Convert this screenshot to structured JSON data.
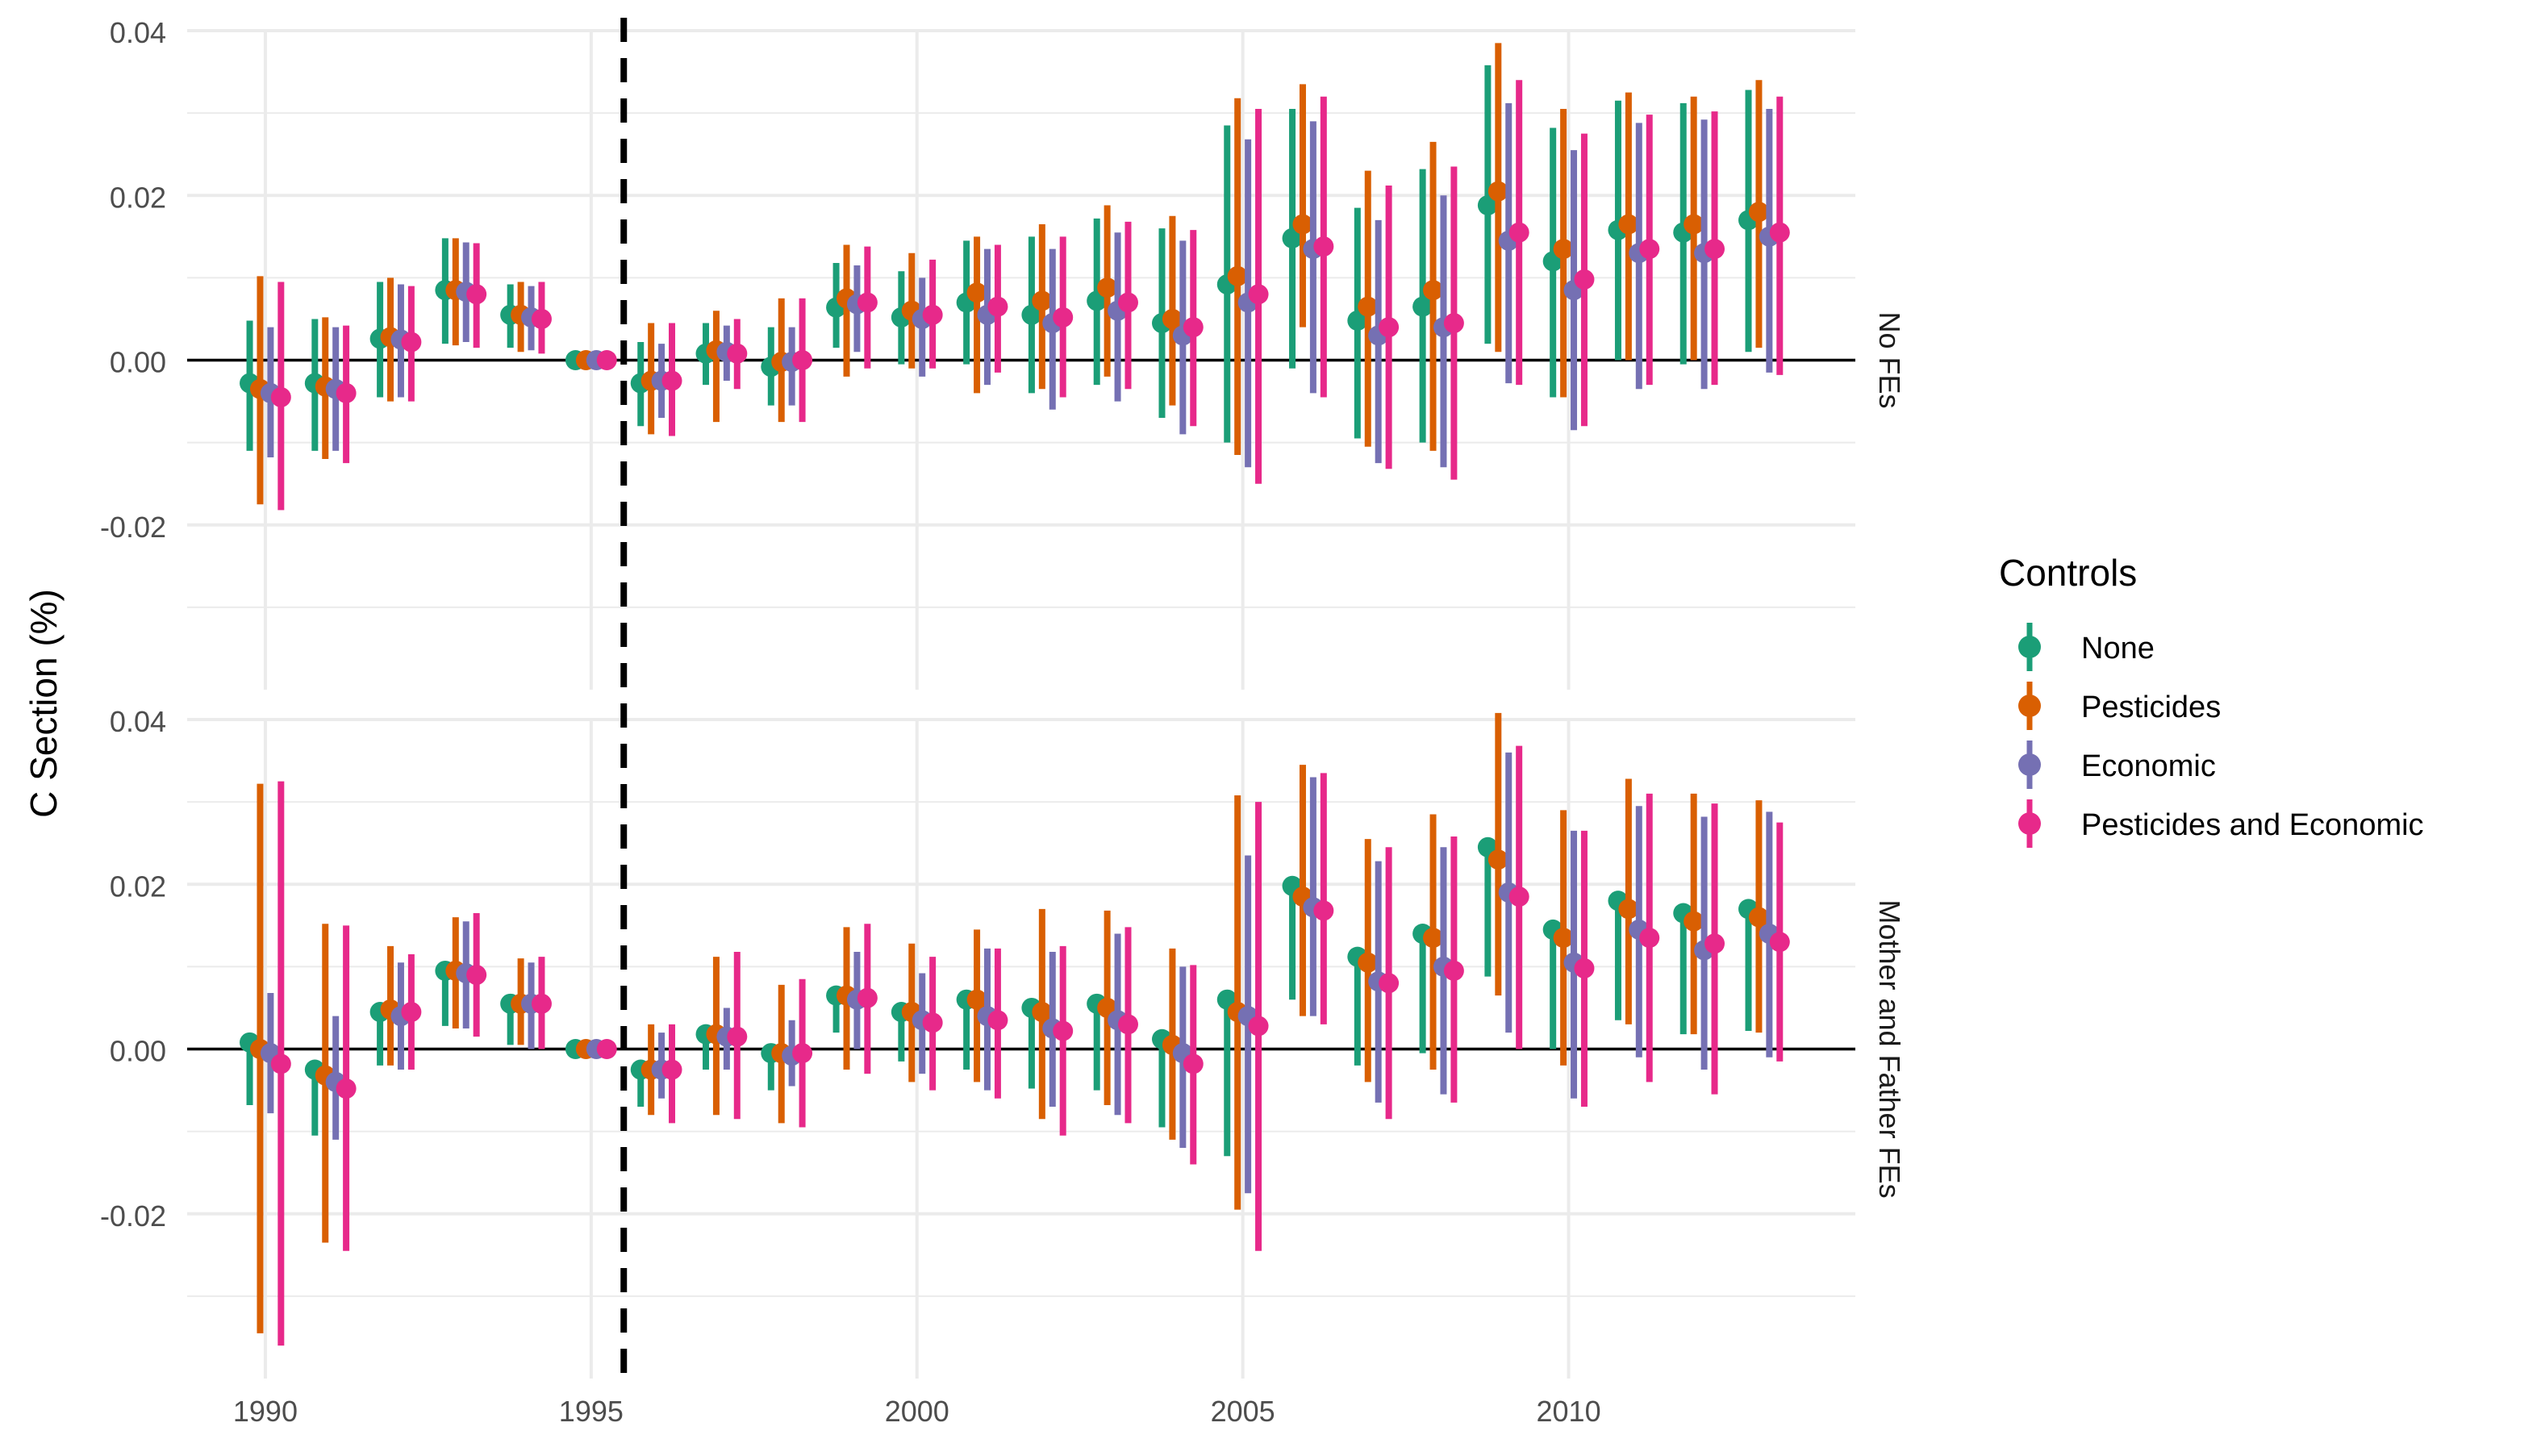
{
  "chart_data": {
    "type": "errorbar",
    "ylabel": "C Section (%)",
    "x_ticks": [
      1990,
      1995,
      2000,
      2005,
      2010
    ],
    "y_ticks": [
      -0.02,
      0.0,
      0.02,
      0.04
    ],
    "y_tick_labels": [
      "-0.02",
      "0.00",
      "0.02",
      "0.04"
    ],
    "ylim": [
      -0.04,
      0.04
    ],
    "xlim": [
      1988.8,
      2014.4
    ],
    "reference_line": {
      "y": 0,
      "color": "#000000"
    },
    "event_line": {
      "x": 1995.5,
      "style": "dashed"
    },
    "grid": true,
    "legend": {
      "title": "Controls",
      "position": "right",
      "entries": [
        {
          "label": "None",
          "color": "#1B9E77"
        },
        {
          "label": "Pesticides",
          "color": "#D95F02"
        },
        {
          "label": "Economic",
          "color": "#7570B3"
        },
        {
          "label": "Pesticides and Economic",
          "color": "#E7298A"
        }
      ]
    },
    "dodge": [
      -0.24,
      -0.08,
      0.08,
      0.24
    ],
    "years": [
      1990,
      1991,
      1992,
      1993,
      1994,
      1995,
      1996,
      1997,
      1998,
      1999,
      2000,
      2001,
      2002,
      2003,
      2004,
      2005,
      2006,
      2007,
      2008,
      2009,
      2010,
      2011,
      2012,
      2013
    ],
    "panels": [
      {
        "label": "No FEs",
        "series": [
          {
            "name": "None",
            "est": [
              -0.0028,
              -0.0028,
              0.0026,
              0.0085,
              0.0055,
              0.0,
              -0.0028,
              0.0008,
              -0.0008,
              0.0064,
              0.0052,
              0.007,
              0.0055,
              0.0072,
              0.0045,
              0.0092,
              0.0148,
              0.0048,
              0.0065,
              0.0188,
              0.012,
              0.0158,
              0.0155,
              0.017
            ],
            "low": [
              -0.011,
              -0.011,
              -0.0045,
              0.002,
              0.0015,
              0.0,
              -0.008,
              -0.003,
              -0.0055,
              0.0015,
              -0.0005,
              -0.0005,
              -0.004,
              -0.003,
              -0.007,
              -0.01,
              -0.001,
              -0.0095,
              -0.01,
              0.002,
              -0.0045,
              0.0,
              -0.0005,
              0.001
            ],
            "high": [
              0.0048,
              0.005,
              0.0095,
              0.0148,
              0.0092,
              0.0,
              0.0022,
              0.0045,
              0.004,
              0.0118,
              0.0108,
              0.0145,
              0.015,
              0.0172,
              0.016,
              0.0285,
              0.0305,
              0.0185,
              0.0232,
              0.0358,
              0.0282,
              0.0315,
              0.0312,
              0.0328
            ]
          },
          {
            "name": "Pesticides",
            "est": [
              -0.0035,
              -0.0032,
              0.0028,
              0.0085,
              0.0055,
              0.0,
              -0.0025,
              0.0012,
              -0.0002,
              0.0075,
              0.006,
              0.0082,
              0.0072,
              0.0088,
              0.005,
              0.0102,
              0.0165,
              0.0065,
              0.0085,
              0.0205,
              0.0135,
              0.0165,
              0.0165,
              0.018
            ],
            "low": [
              -0.0175,
              -0.012,
              -0.005,
              0.0018,
              0.001,
              0.0,
              -0.009,
              -0.0075,
              -0.0075,
              -0.002,
              -0.001,
              -0.004,
              -0.0035,
              -0.002,
              -0.0055,
              -0.0115,
              0.004,
              -0.0105,
              -0.011,
              0.001,
              -0.0045,
              0.0,
              0.0,
              0.0015
            ],
            "high": [
              0.0102,
              0.0052,
              0.01,
              0.0148,
              0.0095,
              0.0,
              0.0045,
              0.006,
              0.0075,
              0.014,
              0.013,
              0.015,
              0.0165,
              0.0188,
              0.0175,
              0.0318,
              0.0335,
              0.023,
              0.0265,
              0.0385,
              0.0305,
              0.0325,
              0.032,
              0.034
            ]
          },
          {
            "name": "Economic",
            "est": [
              -0.004,
              -0.0035,
              0.0025,
              0.0083,
              0.0052,
              0.0,
              -0.0025,
              0.001,
              -0.0002,
              0.0068,
              0.005,
              0.0055,
              0.0045,
              0.006,
              0.003,
              0.007,
              0.0135,
              0.003,
              0.004,
              0.0145,
              0.0085,
              0.013,
              0.013,
              0.015
            ],
            "low": [
              -0.0118,
              -0.011,
              -0.0045,
              0.0022,
              0.0012,
              0.0,
              -0.007,
              -0.0025,
              -0.0055,
              0.001,
              -0.002,
              -0.003,
              -0.006,
              -0.005,
              -0.009,
              -0.013,
              -0.004,
              -0.0125,
              -0.013,
              -0.0028,
              -0.0085,
              -0.0035,
              -0.0035,
              -0.0015
            ],
            "high": [
              0.004,
              0.004,
              0.0092,
              0.0143,
              0.009,
              0.0,
              0.002,
              0.0042,
              0.004,
              0.0115,
              0.01,
              0.0135,
              0.0135,
              0.0155,
              0.0145,
              0.0268,
              0.029,
              0.017,
              0.02,
              0.0312,
              0.0255,
              0.0288,
              0.0292,
              0.0305
            ]
          },
          {
            "name": "Pesticides and Economic",
            "est": [
              -0.0045,
              -0.004,
              0.0022,
              0.008,
              0.005,
              0.0,
              -0.0025,
              0.0008,
              0.0,
              0.007,
              0.0055,
              0.0065,
              0.0052,
              0.007,
              0.004,
              0.008,
              0.0138,
              0.004,
              0.0045,
              0.0155,
              0.0098,
              0.0135,
              0.0135,
              0.0155
            ],
            "low": [
              -0.0182,
              -0.0125,
              -0.005,
              0.0015,
              0.0008,
              0.0,
              -0.0092,
              -0.0035,
              -0.0075,
              -0.001,
              -0.001,
              -0.0015,
              -0.0045,
              -0.0035,
              -0.008,
              -0.015,
              -0.0045,
              -0.0132,
              -0.0145,
              -0.003,
              -0.008,
              -0.003,
              -0.003,
              -0.0018
            ],
            "high": [
              0.0095,
              0.0042,
              0.009,
              0.0142,
              0.0095,
              0.0,
              0.0045,
              0.005,
              0.0075,
              0.0138,
              0.0122,
              0.014,
              0.015,
              0.0168,
              0.0158,
              0.0305,
              0.032,
              0.0212,
              0.0235,
              0.034,
              0.0275,
              0.0298,
              0.0302,
              0.032
            ]
          }
        ]
      },
      {
        "label": "Mother and Father FEs",
        "series": [
          {
            "name": "None",
            "est": [
              0.0008,
              -0.0025,
              0.0045,
              0.0095,
              0.0055,
              0.0,
              -0.0025,
              0.0018,
              -0.0005,
              0.0065,
              0.0045,
              0.006,
              0.005,
              0.0055,
              0.0012,
              0.006,
              0.0198,
              0.0112,
              0.014,
              0.0245,
              0.0145,
              0.018,
              0.0165,
              0.017
            ],
            "low": [
              -0.0068,
              -0.0105,
              -0.002,
              0.0028,
              0.0005,
              0.0,
              -0.007,
              -0.0025,
              -0.005,
              0.002,
              -0.0015,
              -0.0025,
              -0.0048,
              -0.005,
              -0.0095,
              -0.013,
              0.006,
              -0.002,
              -0.0005,
              0.0088,
              0.0,
              0.0035,
              0.0018,
              0.0022
            ]
          },
          {
            "name": "Pesticides",
            "est": [
              0.0,
              -0.0032,
              0.0048,
              0.0095,
              0.0055,
              0.0,
              -0.0025,
              0.0018,
              -0.0005,
              0.0065,
              0.0045,
              0.006,
              0.0045,
              0.005,
              0.0005,
              0.0045,
              0.0185,
              0.0105,
              0.0135,
              0.023,
              0.0135,
              0.017,
              0.0155,
              0.016
            ],
            "low": [
              -0.0345,
              -0.0235,
              -0.002,
              0.0025,
              0.0005,
              0.0,
              -0.008,
              -0.008,
              -0.009,
              -0.0025,
              -0.004,
              -0.004,
              -0.0085,
              -0.0068,
              -0.011,
              -0.0195,
              0.004,
              -0.004,
              -0.0025,
              0.0065,
              -0.002,
              0.003,
              0.0018,
              0.002
            ],
            "high": [
              0.0322,
              0.0152,
              0.0125,
              0.016,
              0.011,
              0.0,
              0.003,
              0.0112,
              0.0078,
              0.0148,
              0.0128,
              0.0145,
              0.017,
              0.0168,
              0.0122,
              0.0308,
              0.0345,
              0.0255,
              0.0285,
              0.0408,
              0.029,
              0.0328,
              0.031,
              0.0302
            ]
          },
          {
            "name": "Economic",
            "est": [
              -0.0005,
              -0.004,
              0.004,
              0.0092,
              0.0055,
              0.0,
              -0.0025,
              0.0015,
              -0.0008,
              0.006,
              0.0035,
              0.004,
              0.0025,
              0.0035,
              -0.0005,
              0.004,
              0.0172,
              0.0082,
              0.01,
              0.019,
              0.0105,
              0.0145,
              0.012,
              0.014
            ],
            "low": [
              -0.0078,
              -0.011,
              -0.0025,
              0.0025,
              0.0,
              0.0,
              -0.006,
              -0.0025,
              -0.0045,
              0.0,
              -0.003,
              -0.005,
              -0.007,
              -0.008,
              -0.012,
              -0.0175,
              0.004,
              -0.0065,
              -0.0055,
              0.002,
              -0.006,
              -0.001,
              -0.0025,
              -0.001
            ],
            "high": [
              0.0068,
              0.004,
              0.0105,
              0.0155,
              0.0105,
              0.0,
              0.002,
              0.005,
              0.0035,
              0.0118,
              0.0092,
              0.0122,
              0.0118,
              0.014,
              0.01,
              0.0235,
              0.033,
              0.0228,
              0.0245,
              0.036,
              0.0265,
              0.0295,
              0.0282,
              0.0288
            ]
          },
          {
            "name": "Pesticides and Economic",
            "est": [
              -0.0018,
              -0.0048,
              0.0045,
              0.009,
              0.0055,
              0.0,
              -0.0025,
              0.0015,
              -0.0005,
              0.0062,
              0.0032,
              0.0035,
              0.0022,
              0.003,
              -0.0018,
              0.0028,
              0.0168,
              0.008,
              0.0095,
              0.0185,
              0.0098,
              0.0135,
              0.0128,
              0.013
            ],
            "low": [
              -0.036,
              -0.0245,
              -0.0025,
              0.0015,
              0.0,
              0.0,
              -0.009,
              -0.0085,
              -0.0095,
              -0.003,
              -0.005,
              -0.006,
              -0.0105,
              -0.009,
              -0.014,
              -0.0245,
              0.003,
              -0.0085,
              -0.0065,
              0.0,
              -0.007,
              -0.004,
              -0.0055,
              -0.0015
            ],
            "high": [
              0.0325,
              0.015,
              0.0115,
              0.0165,
              0.0112,
              0.0,
              0.003,
              0.0118,
              0.0085,
              0.0152,
              0.0112,
              0.0122,
              0.0125,
              0.0148,
              0.0102,
              0.03,
              0.0335,
              0.0245,
              0.0258,
              0.0368,
              0.0265,
              0.031,
              0.0298,
              0.0275
            ]
          }
        ]
      }
    ]
  }
}
